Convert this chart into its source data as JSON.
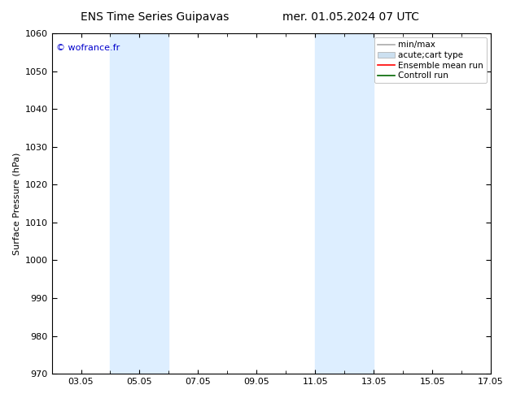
{
  "title_left": "ENS Time Series Guipavas",
  "title_right": "mer. 01.05.2024 07 UTC",
  "ylabel": "Surface Pressure (hPa)",
  "ylim": [
    970,
    1060
  ],
  "yticks": [
    970,
    980,
    990,
    1000,
    1010,
    1020,
    1030,
    1040,
    1050,
    1060
  ],
  "xlim": [
    2,
    17
  ],
  "xtick_positions": [
    3,
    5,
    7,
    9,
    11,
    13,
    15,
    17
  ],
  "xtick_labels": [
    "03.05",
    "05.05",
    "07.05",
    "09.05",
    "11.05",
    "13.05",
    "15.05",
    "17.05"
  ],
  "shaded_bands": [
    {
      "x_start": 4.0,
      "x_end": 6.0,
      "color": "#ddeeff"
    },
    {
      "x_start": 11.0,
      "x_end": 13.0,
      "color": "#ddeeff"
    }
  ],
  "copyright_text": "© wofrance.fr",
  "copyright_color": "#0000cc",
  "legend_entries": [
    {
      "label": "min/max",
      "color": "#aaaaaa",
      "lw": 1.5
    },
    {
      "label": "acute;cart type",
      "color": "#cce0f0",
      "lw": 8
    },
    {
      "label": "Ensemble mean run",
      "color": "#ff0000",
      "lw": 1.5
    },
    {
      "label": "Controll run",
      "color": "#006600",
      "lw": 1.5
    }
  ],
  "bg_color": "#ffffff",
  "plot_bg_color": "#ffffff",
  "title_fontsize": 10,
  "axis_fontsize": 8,
  "tick_fontsize": 8,
  "legend_fontsize": 7.5
}
